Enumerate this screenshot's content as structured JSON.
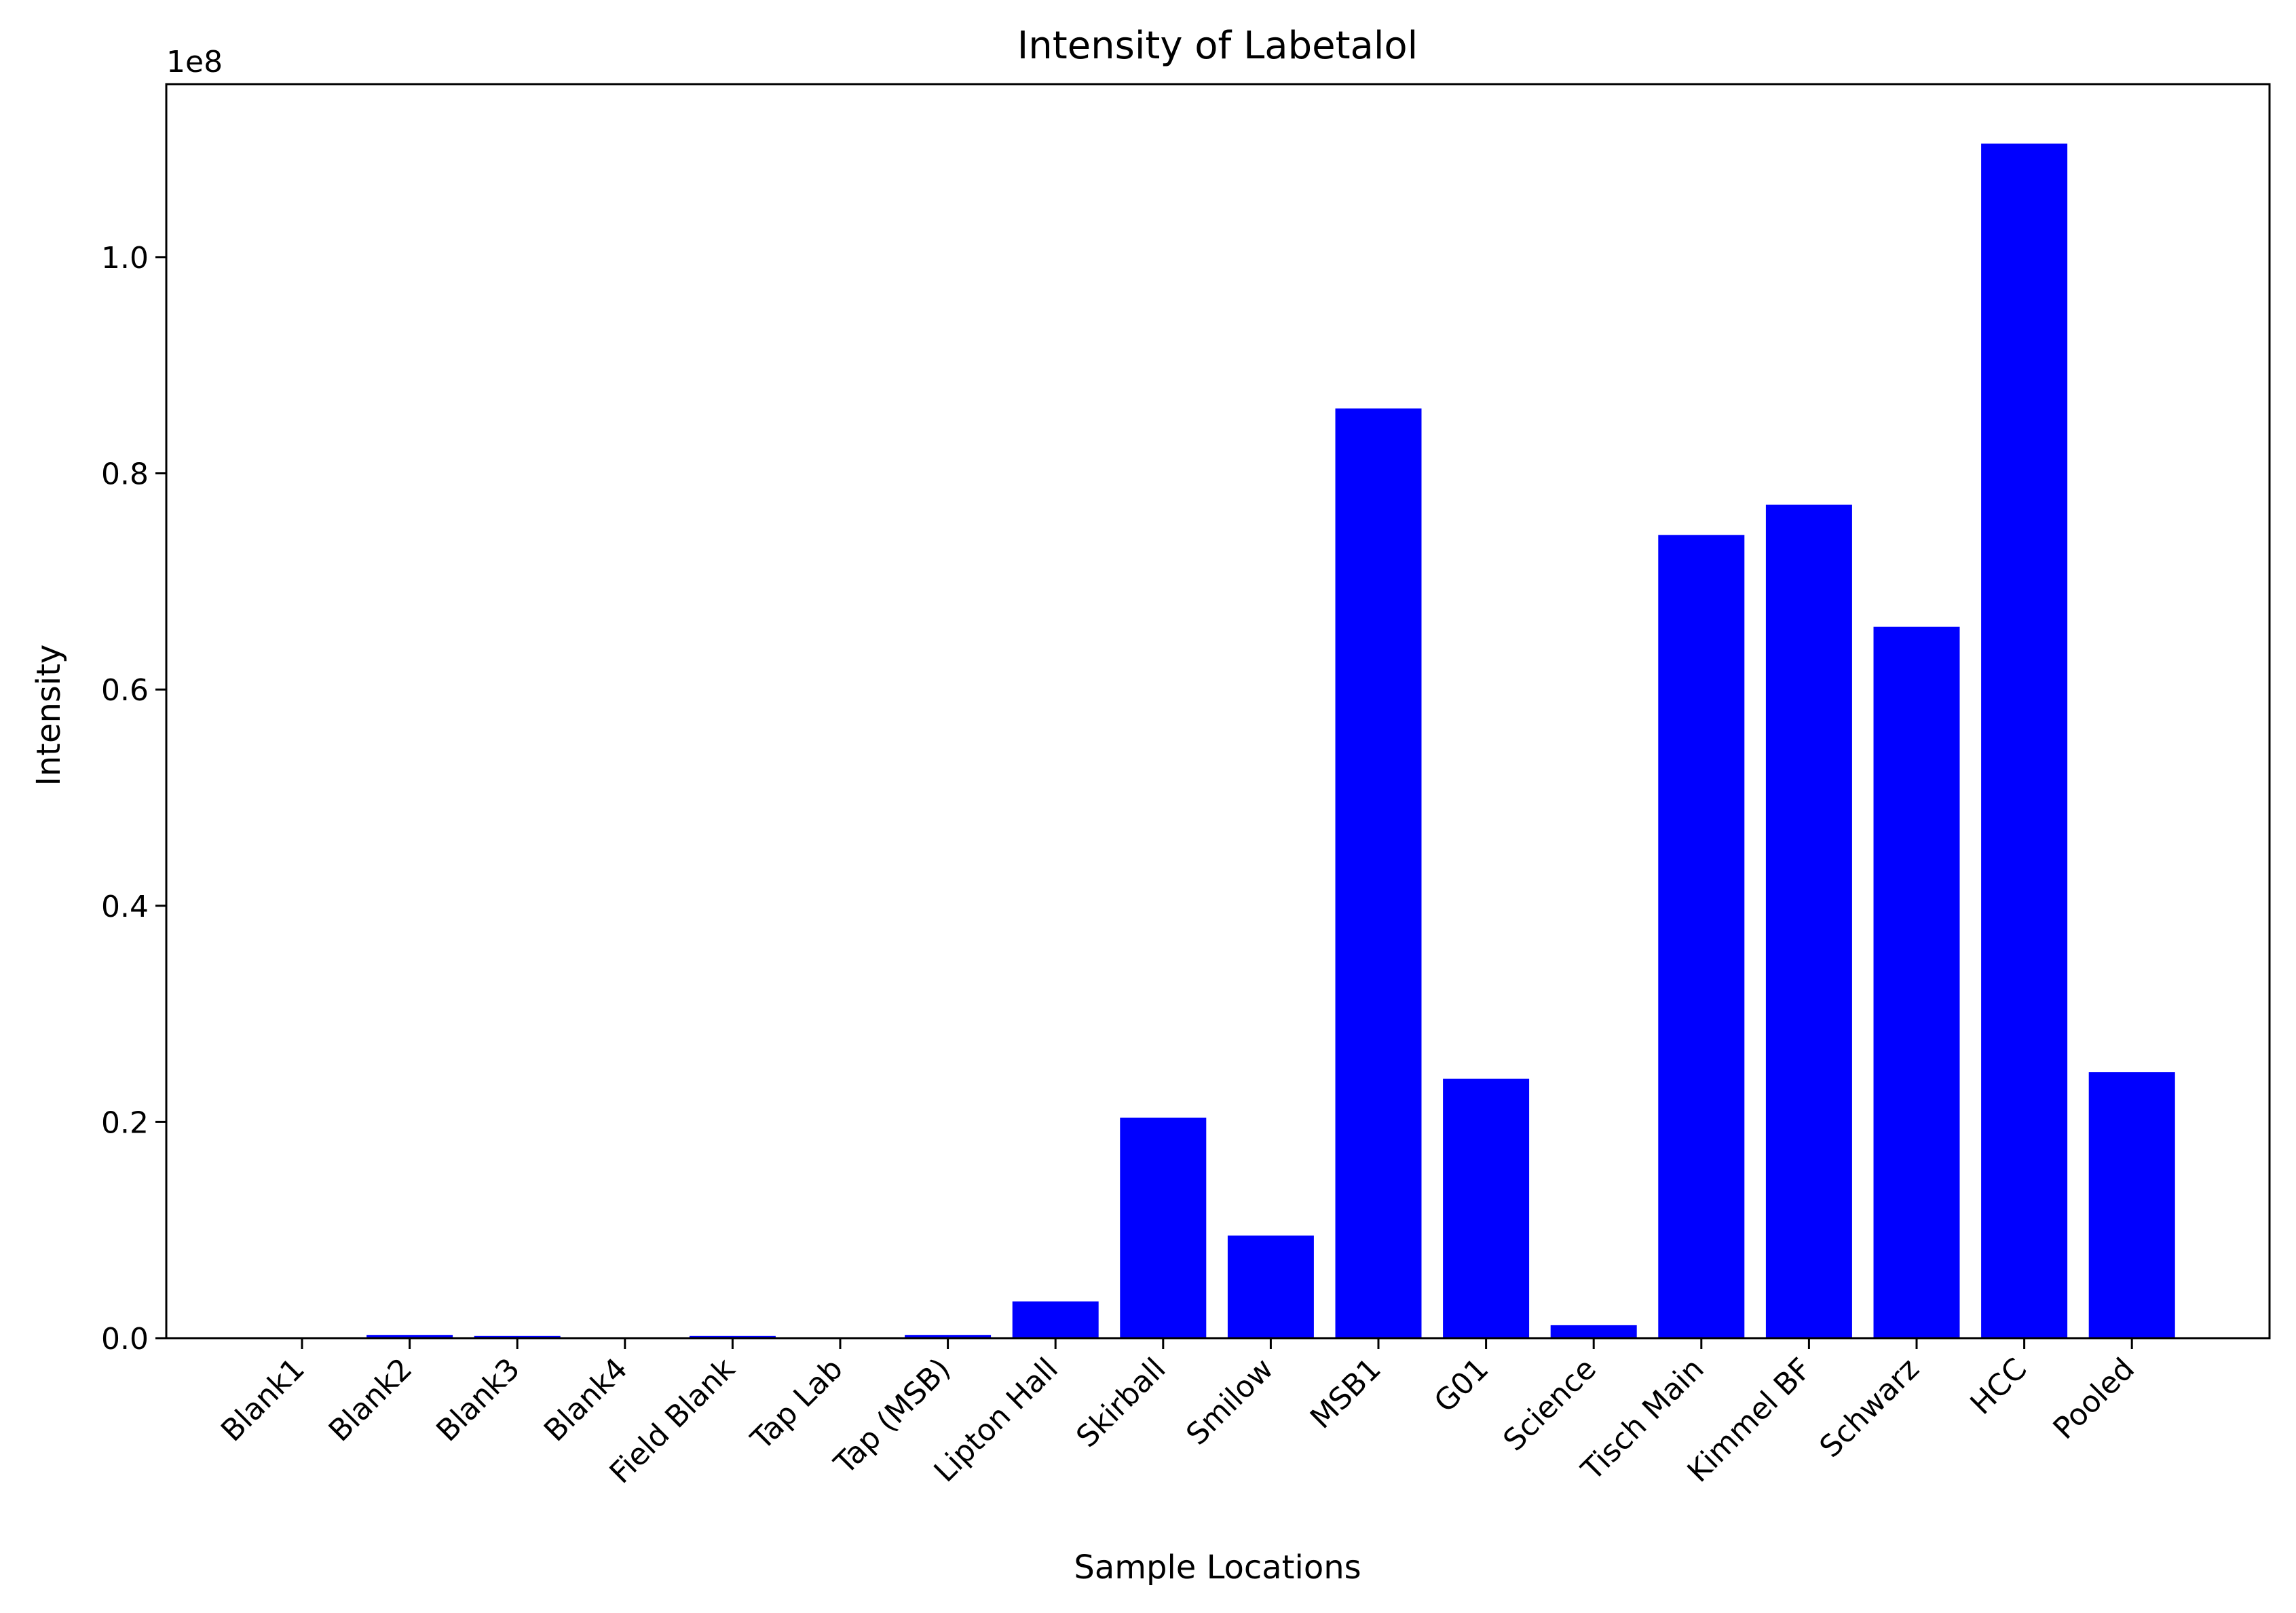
{
  "chart_data": {
    "type": "bar",
    "title": "Intensity of Labetalol",
    "xlabel": "Sample Locations",
    "ylabel": "Intensity",
    "y_offset_label": "1e8",
    "ylim": [
      0,
      1.16
    ],
    "y_scale_factor": 100000000,
    "yticks": [
      0.0,
      0.2,
      0.4,
      0.6,
      0.8,
      1.0
    ],
    "ytick_labels": [
      "0.0",
      "0.2",
      "0.4",
      "0.6",
      "0.8",
      "1.0"
    ],
    "bar_color": "#0000ff",
    "grid": false,
    "categories": [
      "Blank1",
      "Blank2",
      "Blank3",
      "Blank4",
      "Field Blank",
      "Tap Lab",
      "Tap (MSB)",
      "Lipton Hall",
      "Skirball",
      "Smilow",
      "MSB1",
      "G01",
      "Science",
      "Tisch Main",
      "Kimmel BF",
      "Schwarz",
      "HCC",
      "Pooled"
    ],
    "values": [
      0.0,
      0.003,
      0.002,
      0.0,
      0.002,
      0.0,
      0.003,
      0.034,
      0.204,
      0.095,
      0.86,
      0.24,
      0.012,
      0.743,
      0.771,
      0.658,
      1.105,
      0.246
    ]
  }
}
